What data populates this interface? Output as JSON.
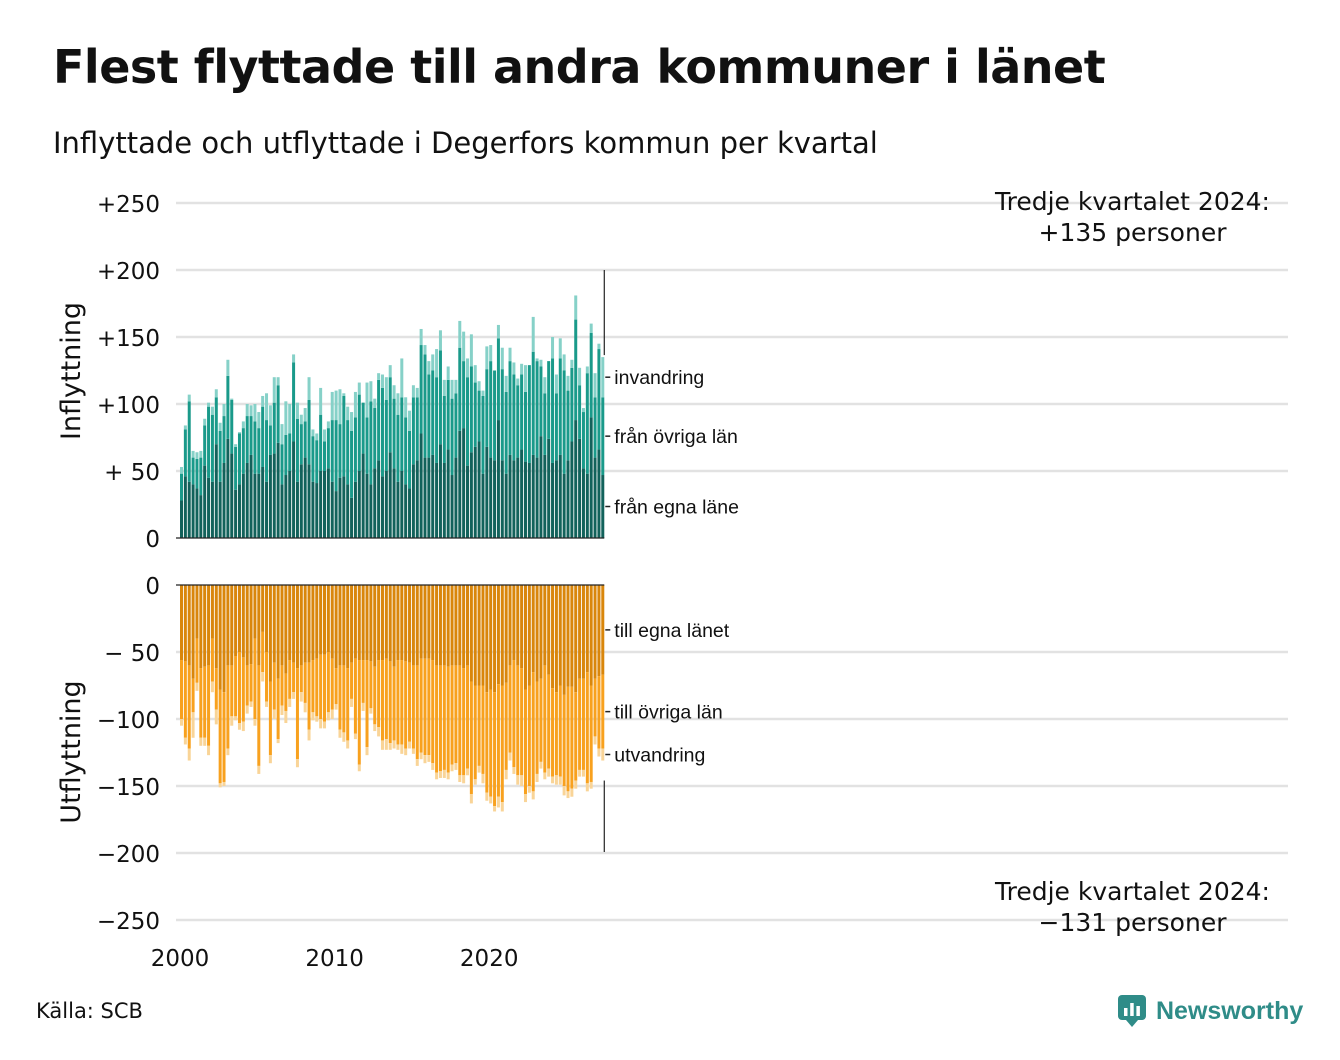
{
  "title": "Flest flyttade till andra kommuner i länet",
  "subtitle": "Inflyttade och utflyttade i Degerfors kommun per kvartal",
  "source": "Källa: SCB",
  "brand": "Newsworthy",
  "annotations": {
    "top_line1": "Tredje kvartalet 2024:",
    "top_line2": "+135 personer",
    "bottom_line1": "Tredje kvartalet 2024:",
    "bottom_line2": "−131 personer"
  },
  "colors": {
    "in_own": "#12625b",
    "in_other": "#1a9a8a",
    "in_immigration": "#86d1c8",
    "out_own": "#d9860b",
    "out_other": "#f8a11e",
    "out_emigration": "#f9d497",
    "grid": "#e2e2e2",
    "brand": "#2f8c88"
  },
  "chart_data": [
    {
      "type": "bar",
      "stacked": true,
      "ylabel": "Inflyttning",
      "ylim": [
        0,
        250
      ],
      "yticks": [
        {
          "value": 250,
          "label": "+250"
        },
        {
          "value": 200,
          "label": "+200"
        },
        {
          "value": 150,
          "label": "+150"
        },
        {
          "value": 100,
          "label": "+100"
        },
        {
          "value": 50,
          "label": "+ 50"
        },
        {
          "value": 0,
          "label": "0"
        }
      ],
      "x_start": 2000.0,
      "x_step": 0.25,
      "xticks": [
        "2000",
        "2010",
        "2020"
      ],
      "series": [
        {
          "name": "från egna läne",
          "values": [
            28,
            46,
            42,
            40,
            37,
            32,
            54,
            45,
            42,
            70,
            42,
            56,
            74,
            63,
            36,
            40,
            48,
            56,
            62,
            48,
            48,
            53,
            42,
            62,
            63,
            71,
            40,
            47,
            50,
            72,
            42,
            55,
            60,
            55,
            42,
            41,
            50,
            50,
            52,
            42,
            35,
            45,
            46,
            40,
            30,
            42,
            50,
            63,
            48,
            40,
            52,
            58,
            46,
            50,
            64,
            52,
            42,
            50,
            40,
            37,
            55,
            58,
            78,
            60,
            60,
            62,
            56,
            70,
            56,
            66,
            47,
            60,
            80,
            82,
            54,
            64,
            68,
            72,
            48,
            68,
            60,
            58,
            88,
            58,
            48,
            62,
            58,
            60,
            66,
            57,
            56,
            62,
            60,
            76,
            62,
            74,
            56,
            58,
            62,
            48,
            58,
            72,
            88,
            74,
            52,
            48,
            90,
            60,
            66,
            47
          ]
        },
        {
          "name": "från övriga län",
          "values": [
            20,
            35,
            60,
            20,
            22,
            28,
            30,
            53,
            50,
            35,
            38,
            35,
            47,
            40,
            32,
            38,
            34,
            35,
            29,
            39,
            34,
            45,
            46,
            22,
            38,
            43,
            30,
            30,
            28,
            59,
            47,
            30,
            27,
            48,
            34,
            32,
            42,
            22,
            30,
            46,
            53,
            40,
            60,
            48,
            50,
            48,
            57,
            38,
            42,
            62,
            45,
            60,
            66,
            53,
            56,
            52,
            50,
            55,
            50,
            43,
            50,
            47,
            66,
            77,
            62,
            63,
            64,
            70,
            50,
            52,
            57,
            48,
            62,
            50,
            66,
            64,
            48,
            38,
            58,
            58,
            72,
            67,
            61,
            68,
            61,
            70,
            64,
            54,
            56,
            52,
            73,
            77,
            72,
            52,
            46,
            58,
            78,
            50,
            72,
            77,
            52,
            55,
            75,
            40,
            42,
            75,
            63,
            45,
            75,
            58
          ]
        },
        {
          "name": "invandring",
          "values": [
            5,
            3,
            5,
            5,
            5,
            5,
            5,
            3,
            6,
            6,
            6,
            9,
            12,
            1,
            2,
            1,
            5,
            9,
            8,
            13,
            12,
            8,
            20,
            15,
            19,
            6,
            15,
            25,
            22,
            6,
            12,
            7,
            10,
            17,
            5,
            5,
            20,
            9,
            5,
            21,
            22,
            26,
            2,
            10,
            14,
            19,
            9,
            0,
            26,
            15,
            7,
            5,
            10,
            17,
            9,
            10,
            16,
            29,
            15,
            15,
            9,
            7,
            12,
            7,
            10,
            12,
            21,
            15,
            12,
            10,
            14,
            10,
            20,
            22,
            14,
            24,
            13,
            7,
            4,
            17,
            12,
            0,
            10,
            16,
            12,
            10,
            9,
            5,
            8,
            20,
            0,
            26,
            2,
            5,
            12,
            0,
            16,
            14,
            15,
            12,
            11,
            6,
            18,
            13,
            3,
            5,
            7,
            18,
            4,
            30
          ]
        }
      ]
    },
    {
      "type": "bar",
      "stacked": true,
      "ylabel": "Utflyttning",
      "ylim": [
        -250,
        0
      ],
      "yticks": [
        {
          "value": 0,
          "label": "0"
        },
        {
          "value": -50,
          "label": "− 50"
        },
        {
          "value": -100,
          "label": "−100"
        },
        {
          "value": -150,
          "label": "−150"
        },
        {
          "value": -200,
          "label": "−200"
        },
        {
          "value": -250,
          "label": "−250"
        }
      ],
      "x_start": 2000.0,
      "x_step": 0.25,
      "xticks": [
        "2000",
        "2010",
        "2020"
      ],
      "series": [
        {
          "name": "till egna länet",
          "values": [
            -56,
            -57,
            -60,
            -70,
            -40,
            -62,
            -61,
            -60,
            -40,
            -62,
            -78,
            -80,
            -60,
            -60,
            -53,
            -50,
            -54,
            -60,
            -59,
            -40,
            -60,
            -35,
            -50,
            -72,
            -58,
            -70,
            -60,
            -66,
            -56,
            -58,
            -62,
            -60,
            -58,
            -58,
            -56,
            -55,
            -52,
            -52,
            -50,
            -55,
            -62,
            -60,
            -60,
            -62,
            -58,
            -55,
            -56,
            -56,
            -56,
            -57,
            -61,
            -56,
            -56,
            -55,
            -57,
            -61,
            -56,
            -56,
            -57,
            -58,
            -60,
            -60,
            -55,
            -55,
            -55,
            -56,
            -60,
            -60,
            -60,
            -61,
            -60,
            -60,
            -60,
            -62,
            -60,
            -72,
            -75,
            -75,
            -75,
            -80,
            -78,
            -80,
            -74,
            -75,
            -73,
            -60,
            -56,
            -60,
            -62,
            -78,
            -75,
            -65,
            -72,
            -70,
            -60,
            -67,
            -77,
            -80,
            -75,
            -82,
            -76,
            -76,
            -80,
            -70,
            -70,
            -65,
            -75,
            -70,
            -68,
            -67
          ]
        },
        {
          "name": "till övriga län",
          "values": [
            -44,
            -57,
            -62,
            -25,
            -33,
            -52,
            -53,
            -60,
            -32,
            -31,
            -70,
            -67,
            -62,
            -38,
            -45,
            -53,
            -48,
            -30,
            -28,
            -60,
            -75,
            -30,
            -37,
            -55,
            -35,
            -45,
            -30,
            -28,
            -29,
            -22,
            -68,
            -20,
            -30,
            -50,
            -39,
            -43,
            -48,
            -50,
            -45,
            -38,
            -27,
            -48,
            -50,
            -54,
            -27,
            -56,
            -78,
            -32,
            -65,
            -35,
            -43,
            -50,
            -60,
            -60,
            -61,
            -55,
            -63,
            -63,
            -65,
            -59,
            -62,
            -70,
            -70,
            -72,
            -72,
            -77,
            -80,
            -79,
            -78,
            -79,
            -74,
            -73,
            -82,
            -80,
            -77,
            -84,
            -70,
            -60,
            -66,
            -75,
            -80,
            -85,
            -84,
            -87,
            -65,
            -65,
            -80,
            -82,
            -80,
            -78,
            -75,
            -89,
            -69,
            -62,
            -80,
            -70,
            -66,
            -62,
            -68,
            -68,
            -78,
            -76,
            -66,
            -68,
            -68,
            -83,
            -72,
            -43,
            -54,
            -55
          ]
        },
        {
          "name": "utvandring",
          "values": [
            -5,
            -5,
            -9,
            -19,
            -6,
            -6,
            -6,
            -7,
            -8,
            -11,
            -3,
            -3,
            -5,
            -7,
            -3,
            -5,
            -7,
            -6,
            -4,
            -5,
            -6,
            -7,
            -4,
            -6,
            -7,
            -3,
            -7,
            -9,
            -6,
            -5,
            -6,
            -7,
            -7,
            -8,
            -6,
            -4,
            -7,
            -5,
            -6,
            -7,
            -4,
            -6,
            -7,
            -6,
            -6,
            -4,
            -5,
            -6,
            -6,
            -4,
            -5,
            -7,
            -7,
            -8,
            -5,
            -6,
            -4,
            -7,
            -5,
            -5,
            -4,
            -5,
            -5,
            -6,
            -5,
            -5,
            -5,
            -5,
            -6,
            -5,
            -5,
            -5,
            -5,
            -6,
            -5,
            -7,
            -4,
            -5,
            -7,
            -6,
            -5,
            -4,
            -8,
            -7,
            -7,
            -6,
            -5,
            -7,
            -8,
            -6,
            -5,
            -6,
            -6,
            -5,
            -5,
            -6,
            -5,
            -7,
            -6,
            -7,
            -5,
            -6,
            -6,
            -5,
            -5,
            -6,
            -5,
            -6,
            -6,
            -9
          ]
        }
      ]
    }
  ]
}
